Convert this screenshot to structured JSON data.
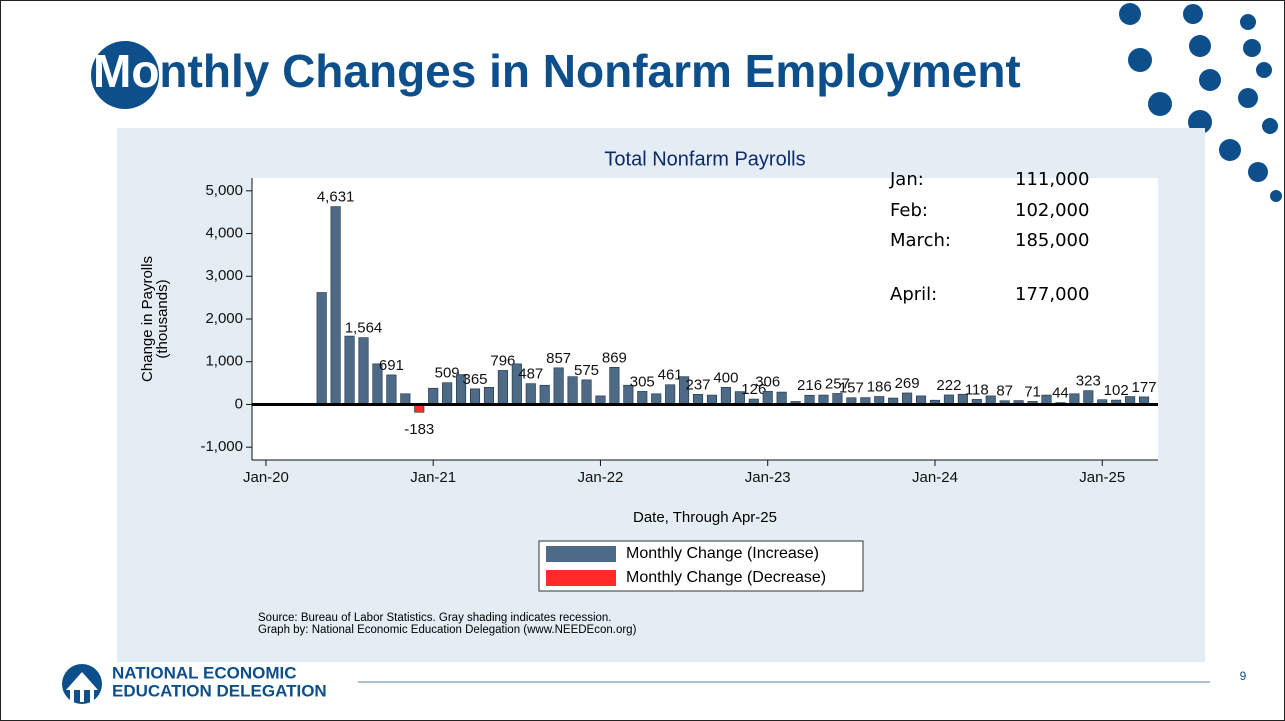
{
  "slide": {
    "title": "Monthly Changes in Nonfarm Employment",
    "logo": [
      "NATIONAL ECONOMIC",
      "EDUCATION DELEGATION"
    ],
    "page_number": "9"
  },
  "chart_data": {
    "type": "bar",
    "title": "Total Nonfarm Payrolls",
    "x_label": "Date, Through Apr-25",
    "y_label": [
      "Change in Payrolls",
      "(thousands)"
    ],
    "source": [
      "Source: Bureau of Labor Statistics. Gray shading indicates recession.",
      "Graph by: National Economic Education Delegation (www.NEEDEcon.org)"
    ],
    "x": [
      "2020-05",
      "2020-06",
      "2020-07",
      "2020-08",
      "2020-09",
      "2020-10",
      "2020-11",
      "2020-12",
      "2021-01",
      "2021-02",
      "2021-03",
      "2021-04",
      "2021-05",
      "2021-06",
      "2021-07",
      "2021-08",
      "2021-09",
      "2021-10",
      "2021-11",
      "2021-12",
      "2022-01",
      "2022-02",
      "2022-03",
      "2022-04",
      "2022-05",
      "2022-06",
      "2022-07",
      "2022-08",
      "2022-09",
      "2022-10",
      "2022-11",
      "2022-12",
      "2023-01",
      "2023-02",
      "2023-03",
      "2023-04",
      "2023-05",
      "2023-06",
      "2023-07",
      "2023-08",
      "2023-09",
      "2023-10",
      "2023-11",
      "2023-12",
      "2024-01",
      "2024-02",
      "2024-03",
      "2024-04",
      "2024-05",
      "2024-06",
      "2024-07",
      "2024-08",
      "2024-09",
      "2024-10",
      "2024-11",
      "2024-12",
      "2025-01",
      "2025-02",
      "2025-03",
      "2025-04"
    ],
    "series": [
      {
        "name": "Monthly Change (Increase)",
        "color": "#4d6a86",
        "values": [
          2620,
          4631,
          1600,
          1564,
          950,
          691,
          250,
          null,
          380,
          509,
          700,
          365,
          400,
          796,
          950,
          487,
          450,
          857,
          650,
          575,
          200,
          869,
          450,
          305,
          250,
          461,
          650,
          237,
          220,
          400,
          300,
          126,
          306,
          290,
          70,
          216,
          220,
          257,
          157,
          160,
          186,
          150,
          269,
          200,
          100,
          222,
          240,
          118,
          200,
          87,
          90,
          71,
          220,
          44,
          250,
          323,
          111,
          102,
          185,
          177
        ],
        "value_labels": [
          "",
          "4,631",
          null,
          "1,564",
          null,
          "691",
          null,
          null,
          null,
          "509",
          null,
          "365",
          null,
          "796",
          null,
          "487",
          null,
          "857",
          null,
          "575",
          null,
          "869",
          null,
          "305",
          null,
          "461",
          null,
          "237",
          null,
          "400",
          null,
          "126",
          "306",
          null,
          null,
          "216",
          null,
          "257",
          "157",
          null,
          "186",
          null,
          "269",
          null,
          null,
          "222",
          null,
          "118",
          null,
          "87",
          null,
          "71",
          null,
          "44",
          null,
          "323",
          null,
          "102",
          null,
          "177"
        ]
      },
      {
        "name": "Monthly Change (Decrease)",
        "color": "#ff2b2b",
        "values": [
          null,
          null,
          null,
          null,
          null,
          null,
          null,
          -183,
          null,
          null,
          null,
          null,
          null,
          null,
          null,
          null,
          null,
          null,
          null,
          null,
          null,
          null,
          null,
          null,
          null,
          null,
          null,
          null,
          null,
          null,
          null,
          null,
          null,
          null,
          null,
          null,
          null,
          null,
          null,
          null,
          null,
          null,
          null,
          null,
          null,
          null,
          null,
          null,
          null,
          null,
          null,
          null,
          null,
          null,
          null,
          null,
          null,
          null,
          null,
          null
        ],
        "value_labels": [
          null,
          null,
          null,
          null,
          null,
          null,
          null,
          "-183",
          null,
          null,
          null,
          null,
          null,
          null,
          null,
          null,
          null,
          null,
          null,
          null,
          null,
          null,
          null,
          null,
          null,
          null,
          null,
          null,
          null,
          null,
          null,
          null,
          null,
          null,
          null,
          null,
          null,
          null,
          null,
          null,
          null,
          null,
          null,
          null,
          null,
          null,
          null,
          null,
          null,
          null,
          null,
          null,
          null,
          null,
          null,
          null,
          null,
          null,
          null,
          null
        ]
      }
    ],
    "xlim": [
      "2019-12",
      "2025-05"
    ],
    "xticks": [
      {
        "value": "2020-01",
        "label": "Jan-20"
      },
      {
        "value": "2021-01",
        "label": "Jan-21"
      },
      {
        "value": "2022-01",
        "label": "Jan-22"
      },
      {
        "value": "2023-01",
        "label": "Jan-23"
      },
      {
        "value": "2024-01",
        "label": "Jan-24"
      },
      {
        "value": "2025-01",
        "label": "Jan-25"
      }
    ],
    "ylim": [
      -1300,
      5300
    ],
    "yticks": [
      {
        "value": -1000,
        "label": "-1,000"
      },
      0,
      {
        "value": 1000,
        "label": "1,000"
      },
      {
        "value": 2000,
        "label": "2,000"
      },
      {
        "value": 3000,
        "label": "3,000"
      },
      {
        "value": 4000,
        "label": "4,000"
      },
      {
        "value": 5000,
        "label": "5,000"
      }
    ],
    "legend": "bottom",
    "annotation_table": [
      [
        "Jan:",
        "111,000"
      ],
      [
        "Feb:",
        "102,000"
      ],
      [
        "March:",
        "185,000"
      ],
      [
        "April:",
        "177,000"
      ]
    ]
  }
}
